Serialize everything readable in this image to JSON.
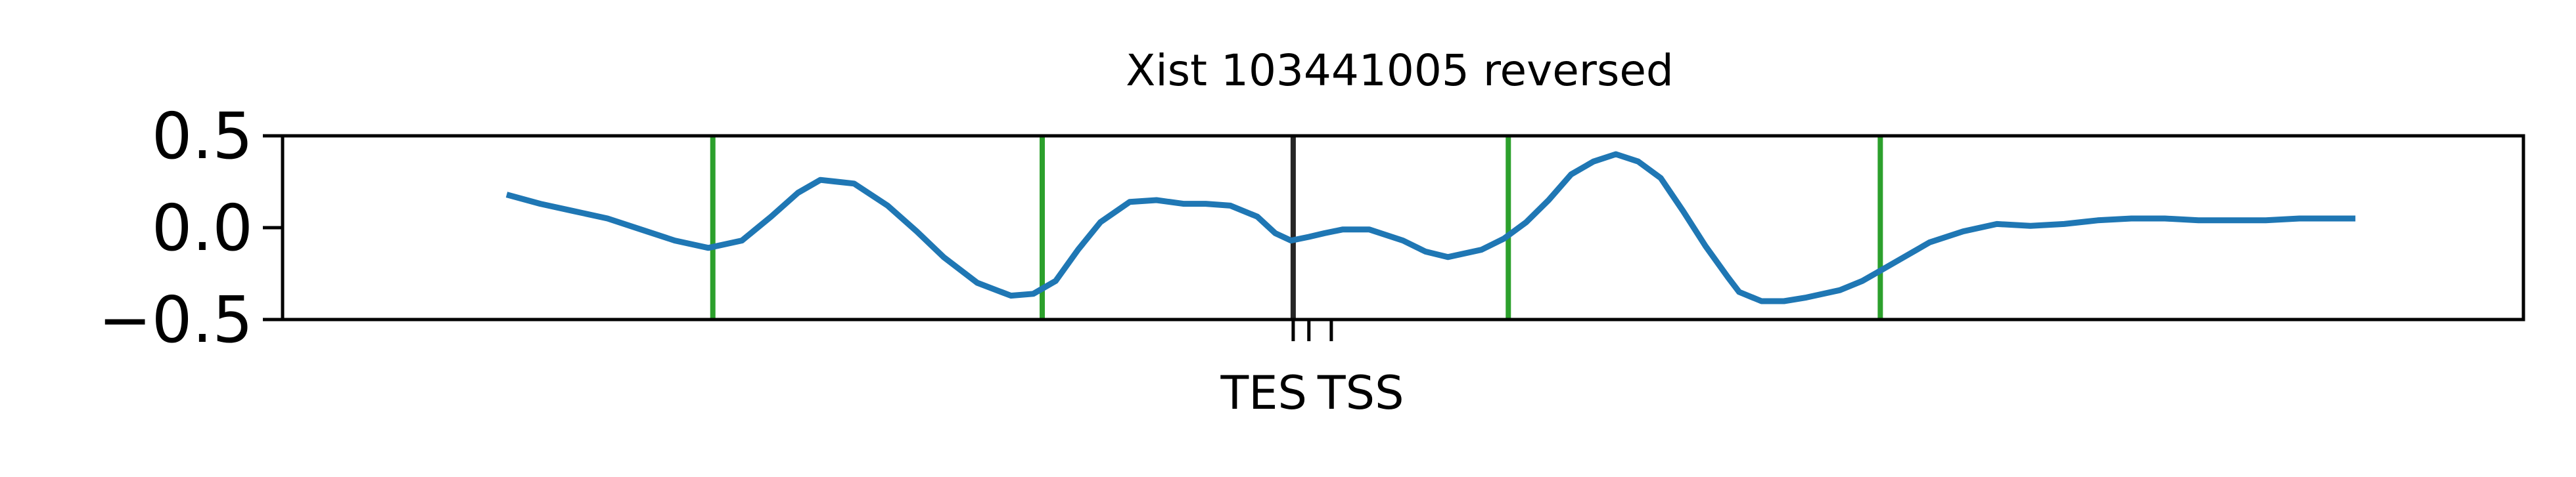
{
  "chart_data": {
    "type": "line",
    "title": "Xist 103441005 reversed",
    "xlabel": "",
    "ylabel": "",
    "ylim": [
      -0.5,
      0.5
    ],
    "xlim": [
      0,
      100
    ],
    "yticks": [
      {
        "value": 0.5,
        "label": "0.5"
      },
      {
        "value": 0.0,
        "label": "0.0"
      },
      {
        "value": -0.5,
        "label": "−0.5"
      }
    ],
    "xticks": [
      {
        "value": 45.1,
        "label": "TES"
      },
      {
        "value": 46.8,
        "label": "TSS"
      }
    ],
    "xtick_marks": [
      45.1,
      45.8,
      46.8
    ],
    "grid": false,
    "legend": "none",
    "series": [
      {
        "color": "#1f77b4",
        "x": [
          10.0,
          11.5,
          13.0,
          14.5,
          16.0,
          17.5,
          19.0,
          20.5,
          21.8,
          23.0,
          24.0,
          25.5,
          27.0,
          28.3,
          29.5,
          31.0,
          32.5,
          33.5,
          34.5,
          35.5,
          36.5,
          37.8,
          39.0,
          40.2,
          41.2,
          42.3,
          43.5,
          44.3,
          45.0,
          45.8,
          46.5,
          47.3,
          48.5,
          50.0,
          51.0,
          52.0,
          53.5,
          54.5,
          55.5,
          56.5,
          57.5,
          58.5,
          59.5,
          60.5,
          61.5,
          62.5,
          63.5,
          64.5,
          65.0,
          66.0,
          67.0,
          68.0,
          69.5,
          70.5,
          71.5,
          72.5,
          73.5,
          75.0,
          76.5,
          78.0,
          79.5,
          81.0,
          82.5,
          84.0,
          85.5,
          87.0,
          88.5,
          90.0,
          90.5,
          91.5,
          92.5
        ],
        "y": [
          0.18,
          0.13,
          0.09,
          0.05,
          -0.01,
          -0.07,
          -0.11,
          -0.07,
          0.06,
          0.19,
          0.26,
          0.24,
          0.12,
          -0.02,
          -0.16,
          -0.3,
          -0.37,
          -0.36,
          -0.29,
          -0.12,
          0.03,
          0.14,
          0.15,
          0.13,
          0.13,
          0.12,
          0.06,
          -0.03,
          -0.07,
          -0.05,
          -0.03,
          -0.01,
          -0.01,
          -0.07,
          -0.13,
          -0.16,
          -0.12,
          -0.06,
          0.03,
          0.15,
          0.29,
          0.36,
          0.4,
          0.36,
          0.27,
          0.09,
          -0.1,
          -0.27,
          -0.35,
          -0.4,
          -0.4,
          -0.38,
          -0.34,
          -0.29,
          -0.22,
          -0.15,
          -0.08,
          -0.02,
          0.02,
          0.01,
          0.02,
          0.04,
          0.05,
          0.05,
          0.04,
          0.04,
          0.04,
          0.05,
          0.05,
          0.05,
          0.05
        ]
      }
    ],
    "vlines": [
      {
        "x": 19.2,
        "color": "#2ca02c"
      },
      {
        "x": 33.9,
        "color": "#2ca02c"
      },
      {
        "x": 45.1,
        "color": "#262626"
      },
      {
        "x": 54.7,
        "color": "#2ca02c"
      },
      {
        "x": 71.3,
        "color": "#2ca02c"
      }
    ]
  }
}
